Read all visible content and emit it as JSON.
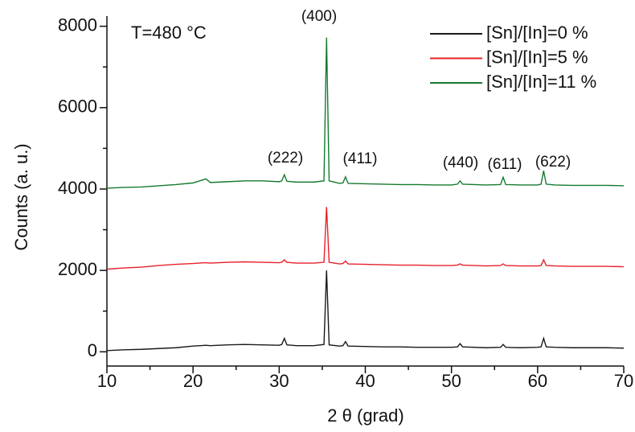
{
  "chart_data": {
    "type": "line",
    "annotations": [
      "T=480 °C",
      "(400)",
      "(222)",
      "(411)",
      "(440)",
      "(611)",
      "(622)"
    ],
    "xlabel": "2 θ (grad)",
    "ylabel": "Counts (a. u.)",
    "xlim": [
      10,
      70
    ],
    "ylim": [
      -350,
      8250
    ],
    "xticks": [
      10,
      20,
      30,
      40,
      50,
      60,
      70
    ],
    "yticks": [
      0,
      2000,
      4000,
      6000,
      8000
    ],
    "xminor": [
      15,
      25,
      35,
      45,
      55,
      65
    ],
    "yminor": [
      1000,
      3000,
      5000,
      7000
    ],
    "legend": "upper right",
    "grid": false,
    "x": [
      10,
      12,
      14,
      16,
      18,
      20,
      21.5,
      22,
      24,
      26,
      28,
      30,
      30.3,
      30.6,
      30.9,
      32,
      34,
      35.2,
      35.5,
      35.8,
      37,
      37.4,
      37.7,
      38,
      40,
      42,
      44,
      46,
      48,
      50,
      50.7,
      51,
      51.3,
      54,
      55.7,
      56,
      56.3,
      58,
      60,
      60.4,
      60.7,
      61,
      62,
      64,
      66,
      68,
      70
    ],
    "series": [
      {
        "name": "[Sn]/[In]=0 %",
        "color": "#1a1a1a",
        "values": [
          30,
          50,
          60,
          80,
          100,
          140,
          160,
          150,
          170,
          180,
          170,
          160,
          180,
          330,
          170,
          150,
          150,
          180,
          2000,
          170,
          140,
          150,
          250,
          140,
          130,
          120,
          120,
          110,
          110,
          110,
          120,
          200,
          120,
          100,
          110,
          180,
          110,
          100,
          110,
          120,
          330,
          120,
          110,
          100,
          100,
          100,
          90
        ]
      },
      {
        "name": "[Sn]/[In]=5 %",
        "color": "#e8202a",
        "values": [
          2030,
          2060,
          2080,
          2120,
          2150,
          2170,
          2190,
          2180,
          2200,
          2210,
          2200,
          2190,
          2200,
          2260,
          2200,
          2180,
          2180,
          2200,
          3560,
          2200,
          2160,
          2170,
          2230,
          2160,
          2150,
          2140,
          2130,
          2130,
          2120,
          2120,
          2130,
          2160,
          2130,
          2110,
          2120,
          2160,
          2120,
          2110,
          2110,
          2120,
          2260,
          2120,
          2110,
          2100,
          2100,
          2100,
          2090
        ]
      },
      {
        "name": "[Sn]/[In]=11 %",
        "color": "#157a2e",
        "values": [
          4020,
          4040,
          4050,
          4080,
          4110,
          4150,
          4250,
          4160,
          4180,
          4200,
          4200,
          4180,
          4200,
          4350,
          4190,
          4170,
          4170,
          4200,
          7720,
          4200,
          4140,
          4150,
          4300,
          4140,
          4130,
          4120,
          4110,
          4110,
          4100,
          4100,
          4120,
          4200,
          4120,
          4100,
          4110,
          4290,
          4110,
          4100,
          4100,
          4120,
          4450,
          4120,
          4100,
          4090,
          4090,
          4090,
          4080
        ]
      }
    ]
  }
}
